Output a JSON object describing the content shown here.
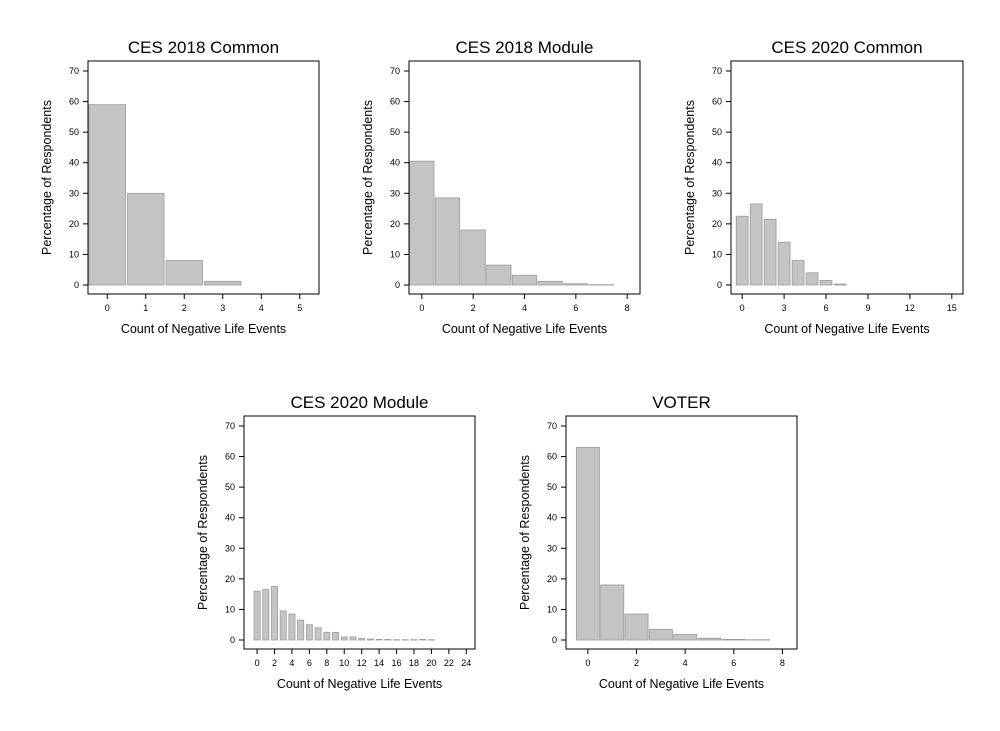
{
  "chart_data": [
    {
      "type": "bar",
      "title": "CES 2018 Common",
      "xlabel": "Count of Negative Life Events",
      "ylabel": "Percentage of Respondents",
      "ylim": [
        0,
        70
      ],
      "xlim": [
        -0.5,
        5.5
      ],
      "x_ticks": [
        0,
        1,
        2,
        3,
        4,
        5
      ],
      "y_ticks": [
        0,
        10,
        20,
        30,
        40,
        50,
        60,
        70
      ],
      "bar_width": 0.95,
      "x": [
        0,
        1,
        2,
        3
      ],
      "values": [
        59,
        30,
        8,
        1.2
      ],
      "grid": false
    },
    {
      "type": "bar",
      "title": "CES 2018 Module",
      "xlabel": "Count of Negative Life Events",
      "ylabel": "Percentage of Respondents",
      "ylim": [
        0,
        70
      ],
      "xlim": [
        -0.5,
        8.5
      ],
      "x_ticks": [
        0,
        2,
        4,
        6,
        8
      ],
      "y_ticks": [
        0,
        10,
        20,
        30,
        40,
        50,
        60,
        70
      ],
      "bar_width": 0.95,
      "x": [
        0,
        1,
        2,
        3,
        4,
        5,
        6,
        7
      ],
      "values": [
        40.5,
        28.5,
        18,
        6.5,
        3.2,
        1.2,
        0.4,
        0.1
      ],
      "grid": false
    },
    {
      "type": "bar",
      "title": "CES 2020 Common",
      "xlabel": "Count of Negative Life Events",
      "ylabel": "Percentage of Respondents",
      "ylim": [
        0,
        70
      ],
      "xlim": [
        -0.8,
        15.8
      ],
      "x_ticks": [
        0,
        3,
        6,
        9,
        12,
        15
      ],
      "y_ticks": [
        0,
        10,
        20,
        30,
        40,
        50,
        60,
        70
      ],
      "bar_width": 0.85,
      "x": [
        0,
        1,
        2,
        3,
        4,
        5,
        6,
        7
      ],
      "values": [
        22.5,
        26.5,
        21.5,
        14,
        8,
        4,
        1.5,
        0.3
      ],
      "grid": false
    },
    {
      "type": "bar",
      "title": "CES 2020 Module",
      "xlabel": "Count of Negative Life Events",
      "ylabel": "Percentage of Respondents",
      "ylim": [
        0,
        70
      ],
      "xlim": [
        -1.5,
        25
      ],
      "x_ticks": [
        0,
        2,
        4,
        6,
        8,
        10,
        12,
        14,
        16,
        18,
        20,
        22,
        24
      ],
      "y_ticks": [
        0,
        10,
        20,
        30,
        40,
        50,
        60,
        70
      ],
      "bar_width": 0.7,
      "x": [
        0,
        1,
        2,
        3,
        4,
        5,
        6,
        7,
        8,
        9,
        10,
        11,
        12,
        13,
        14,
        15,
        16,
        17,
        18,
        19,
        20
      ],
      "values": [
        16,
        16.5,
        17.5,
        9.5,
        8.5,
        6.5,
        5,
        4,
        2.5,
        2.5,
        1,
        1,
        0.5,
        0.3,
        0.2,
        0.2,
        0.1,
        0.1,
        0.1,
        0.2,
        0.1
      ],
      "grid": false
    },
    {
      "type": "bar",
      "title": "VOTER",
      "xlabel": "Count of Negative Life Events",
      "ylabel": "Percentage of Respondents",
      "ylim": [
        0,
        70
      ],
      "xlim": [
        -0.9,
        8.6
      ],
      "x_ticks": [
        0,
        2,
        4,
        6,
        8
      ],
      "y_ticks": [
        0,
        10,
        20,
        30,
        40,
        50,
        60,
        70
      ],
      "bar_width": 0.95,
      "x": [
        0,
        1,
        2,
        3,
        4,
        5,
        6,
        7
      ],
      "values": [
        63,
        18,
        8.5,
        3.5,
        1.8,
        0.6,
        0.2,
        0.1
      ],
      "grid": false
    }
  ]
}
